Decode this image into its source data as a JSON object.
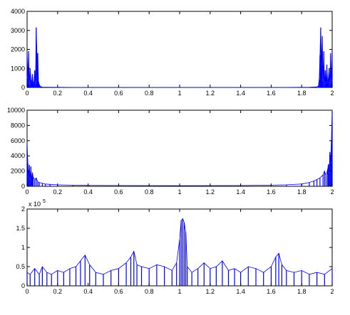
{
  "colors": {
    "series": "#0000ff",
    "axes": "#000000",
    "background": "#ffffff"
  },
  "chart_data": [
    {
      "type": "line",
      "title": "",
      "xlabel": "",
      "ylabel": "",
      "xlim": [
        0,
        2
      ],
      "ylim": [
        0,
        4000
      ],
      "grid": false,
      "x_ticks": [
        "0",
        "0.2",
        "0.4",
        "0.6",
        "0.8",
        "1",
        "1.2",
        "1.4",
        "1.6",
        "1.8",
        "2"
      ],
      "y_ticks": [
        "0",
        "1000",
        "2000",
        "3000",
        "4000"
      ],
      "exponent_label": "",
      "series": [
        {
          "x": [
            0,
            0.005,
            0.01,
            0.015,
            0.02,
            0.025,
            0.03,
            0.035,
            0.04,
            0.045,
            0.05,
            0.055,
            0.06,
            0.065,
            0.07,
            0.075,
            0.08,
            0.085,
            0.09,
            0.1,
            0.15,
            0.3,
            0.6,
            1.0,
            1.4,
            1.7,
            1.85,
            1.9,
            1.91,
            1.915,
            1.92,
            1.925,
            1.93,
            1.935,
            1.94,
            1.945,
            1.95,
            1.955,
            1.96,
            1.965,
            1.97,
            1.975,
            1.98,
            1.985,
            1.99,
            1.995,
            2.0
          ],
          "y": [
            1800,
            500,
            1900,
            200,
            1000,
            400,
            250,
            700,
            150,
            300,
            900,
            200,
            3150,
            1700,
            1800,
            300,
            150,
            80,
            40,
            20,
            10,
            5,
            5,
            5,
            5,
            5,
            10,
            30,
            80,
            400,
            1700,
            3150,
            1200,
            2700,
            300,
            1900,
            150,
            900,
            200,
            1200,
            250,
            500,
            1000,
            200,
            1800,
            300,
            1900
          ]
        }
      ]
    },
    {
      "type": "line",
      "title": "",
      "xlabel": "",
      "ylabel": "",
      "xlim": [
        0,
        2
      ],
      "ylim": [
        0,
        10000
      ],
      "grid": false,
      "x_ticks": [
        "0",
        "0.2",
        "0.4",
        "0.6",
        "0.8",
        "1",
        "1.2",
        "1.4",
        "1.6",
        "1.8",
        "2"
      ],
      "y_ticks": [
        "0",
        "2000",
        "4000",
        "6000",
        "8000",
        "10000"
      ],
      "exponent_label": "",
      "series": [
        {
          "x": [
            0,
            0.005,
            0.01,
            0.015,
            0.02,
            0.025,
            0.03,
            0.035,
            0.04,
            0.05,
            0.06,
            0.07,
            0.08,
            0.1,
            0.12,
            0.15,
            0.2,
            0.3,
            0.4,
            0.6,
            0.8,
            1.0,
            1.2,
            1.4,
            1.6,
            1.7,
            1.8,
            1.85,
            1.88,
            1.9,
            1.92,
            1.94,
            1.95,
            1.96,
            1.97,
            1.975,
            1.98,
            1.985,
            1.99,
            1.995,
            2.0
          ],
          "y": [
            5500,
            3000,
            1200,
            2800,
            900,
            2600,
            700,
            1800,
            1200,
            900,
            1100,
            600,
            500,
            400,
            300,
            250,
            200,
            150,
            120,
            100,
            90,
            80,
            90,
            100,
            150,
            200,
            300,
            500,
            700,
            900,
            1100,
            1500,
            2000,
            1400,
            2200,
            2900,
            1800,
            4500,
            3000,
            6000,
            9800
          ]
        }
      ]
    },
    {
      "type": "line",
      "title": "",
      "xlabel": "",
      "ylabel": "",
      "xlim": [
        0,
        2
      ],
      "ylim": [
        0,
        2
      ],
      "grid": false,
      "x_ticks": [
        "0",
        "0.2",
        "0.4",
        "0.6",
        "0.8",
        "1",
        "1.2",
        "1.4",
        "1.6",
        "1.8",
        "2"
      ],
      "y_ticks": [
        "0",
        "0.5",
        "1",
        "1.5",
        "2"
      ],
      "exponent_label": "x 10",
      "exponent_power": "5",
      "series": [
        {
          "x": [
            0,
            0.02,
            0.05,
            0.08,
            0.1,
            0.13,
            0.16,
            0.2,
            0.24,
            0.28,
            0.32,
            0.35,
            0.38,
            0.41,
            0.45,
            0.5,
            0.55,
            0.6,
            0.65,
            0.68,
            0.7,
            0.72,
            0.75,
            0.8,
            0.85,
            0.9,
            0.95,
            0.98,
            1.0,
            1.01,
            1.02,
            1.03,
            1.04,
            1.05,
            1.08,
            1.12,
            1.16,
            1.2,
            1.24,
            1.28,
            1.32,
            1.36,
            1.4,
            1.45,
            1.5,
            1.55,
            1.6,
            1.63,
            1.65,
            1.67,
            1.7,
            1.75,
            1.8,
            1.85,
            1.9,
            1.95,
            2.0
          ],
          "y": [
            0.35,
            0.3,
            0.45,
            0.3,
            0.5,
            0.35,
            0.3,
            0.4,
            0.35,
            0.45,
            0.5,
            0.65,
            0.8,
            0.55,
            0.35,
            0.3,
            0.4,
            0.45,
            0.6,
            0.75,
            0.9,
            0.55,
            0.5,
            0.45,
            0.55,
            0.5,
            0.4,
            0.6,
            1.2,
            1.7,
            1.75,
            1.65,
            1.4,
            0.5,
            0.35,
            0.45,
            0.6,
            0.45,
            0.5,
            0.65,
            0.4,
            0.45,
            0.35,
            0.5,
            0.45,
            0.35,
            0.5,
            0.75,
            0.85,
            0.55,
            0.4,
            0.35,
            0.4,
            0.3,
            0.35,
            0.3,
            0.45
          ]
        }
      ]
    }
  ]
}
